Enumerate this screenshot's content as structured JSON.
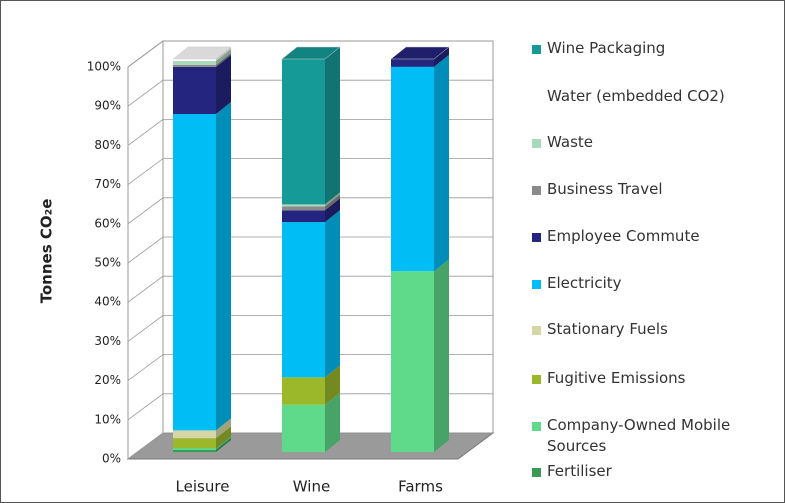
{
  "chart_data": {
    "type": "bar3d_stacked",
    "y_label": "Tonnes CO₂e",
    "categories": [
      "Leisure",
      "Wine",
      "Farms"
    ],
    "ylim": [
      0,
      100
    ],
    "yticks": [
      {
        "value": 0,
        "label": "0%"
      },
      {
        "value": 10,
        "label": "10%"
      },
      {
        "value": 20,
        "label": "20%"
      },
      {
        "value": 30,
        "label": "30%"
      },
      {
        "value": 40,
        "label": "40%"
      },
      {
        "value": 50,
        "label": "50%"
      },
      {
        "value": 60,
        "label": "60%"
      },
      {
        "value": 70,
        "label": "70%"
      },
      {
        "value": 80,
        "label": "80%"
      },
      {
        "value": 90,
        "label": "90%"
      },
      {
        "value": 100,
        "label": "100%"
      }
    ],
    "grid": true,
    "series": [
      {
        "name": "Fertiliser",
        "color": "#3a9a55",
        "values": [
          0.5,
          0,
          0
        ]
      },
      {
        "name": "Company-Owned Mobile Sources",
        "color": "#5fd98a",
        "values": [
          0.5,
          12,
          46
        ]
      },
      {
        "name": "Fugitive Emissions",
        "color": "#9ab82a",
        "values": [
          2.5,
          7,
          0
        ]
      },
      {
        "name": "Stationary Fuels",
        "color": "#d6d6a4",
        "values": [
          2,
          0,
          0
        ]
      },
      {
        "name": "Electricity",
        "color": "#00bdf5",
        "values": [
          80.5,
          39.5,
          52
        ]
      },
      {
        "name": "Employee Commute",
        "color": "#24257e",
        "values": [
          12,
          3,
          2
        ]
      },
      {
        "name": "Business Travel",
        "color": "#8a8a8a",
        "values": [
          0.5,
          1,
          0
        ]
      },
      {
        "name": "Waste",
        "color": "#a9d9bb",
        "values": [
          1,
          0.5,
          0
        ]
      },
      {
        "name": "Water (embedded CO2)",
        "color": "#ffffff",
        "values": [
          0.5,
          0,
          0
        ]
      },
      {
        "name": "Wine Packaging",
        "color": "#169a98",
        "values": [
          0,
          37,
          0
        ]
      }
    ]
  }
}
